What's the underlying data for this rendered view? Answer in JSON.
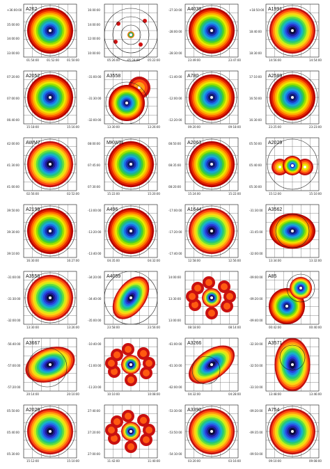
{
  "figure": {
    "panels": [
      {
        "name": "A262",
        "labels_y": [
          "+36:00:00",
          "35:00:00",
          "34:00:00",
          "33:00:00"
        ],
        "labels_x": [
          "01:54:00",
          "01:52:00",
          "01:50:00"
        ],
        "shape": "circle",
        "style": "warm"
      },
      {
        "name": "",
        "labels_y": [
          "16:00:00",
          "14:00:00",
          "12:00:00",
          "10:00:00"
        ],
        "labels_x": [
          "05:26:00",
          "05:24:00",
          "05:22:00"
        ],
        "shape": "small",
        "style": "warm"
      },
      {
        "name": "A4038",
        "labels_y": [
          "-27:30:00",
          "-28:00:00",
          "-28:30:00"
        ],
        "labels_x": [
          "23:49:00",
          "23:47:00"
        ],
        "shape": "circle",
        "style": "warm"
      },
      {
        "name": "A1991",
        "labels_y": [
          "+18:50:00",
          "18:40:00",
          "18:30:00"
        ],
        "labels_x": [
          "14:56:00",
          "14:54:00"
        ],
        "shape": "circle",
        "style": "cool"
      },
      {
        "name": "A2052",
        "labels_y": [
          "07:20:00",
          "07:00:00",
          "06:40:00"
        ],
        "labels_x": [
          "15:18:00",
          "15:16:00"
        ],
        "shape": "circle",
        "style": "warm"
      },
      {
        "name": "A3558",
        "labels_y": [
          "-31:00:00",
          "-31:30:00",
          "-32:00:00"
        ],
        "labels_x": [
          "13:30:00",
          "13:26:00"
        ],
        "shape": "double",
        "style": "warm"
      },
      {
        "name": "A780",
        "labels_y": [
          "-11:40:00",
          "-12:00:00",
          "-12:20:00"
        ],
        "labels_x": [
          "09:20:00",
          "09:18:00"
        ],
        "shape": "circle",
        "style": "warm"
      },
      {
        "name": "A2589",
        "labels_y": [
          "17:10:00",
          "16:50:00",
          "16:30:00"
        ],
        "labels_x": [
          "23:25:00",
          "23:23:00"
        ],
        "shape": "circle",
        "style": "warm"
      },
      {
        "name": "AWM7",
        "labels_y": [
          "42:00:00",
          "41:30:00",
          "41:00:00"
        ],
        "labels_x": [
          "02:56:00",
          "02:52:00"
        ],
        "shape": "circle",
        "style": "cool"
      },
      {
        "name": "MKW3s",
        "labels_y": [
          "08:00:00",
          "07:45:00",
          "07:30:00"
        ],
        "labels_x": [
          "15:22:00",
          "15:20:00"
        ],
        "shape": "circle",
        "style": "warm"
      },
      {
        "name": "A2063",
        "labels_y": [
          "08:50:00",
          "08:35:00",
          "08:20:00"
        ],
        "labels_x": [
          "15:24:00",
          "15:22:00"
        ],
        "shape": "circle",
        "style": "warm"
      },
      {
        "name": "A2029",
        "labels_y": [
          "05:50:00",
          "05:40:00",
          "05:30:00"
        ],
        "labels_x": [
          "15:12:00",
          "15:10:00"
        ],
        "shape": "triple",
        "style": "warm"
      },
      {
        "name": "A2199",
        "labels_y": [
          "39:50:00",
          "39:30:00",
          "39:10:00"
        ],
        "labels_x": [
          "16:30:00",
          "16:27:00"
        ],
        "shape": "circle",
        "style": "warm"
      },
      {
        "name": "A496",
        "labels_y": [
          "-13:00:00",
          "-13:20:00",
          "-13:40:00"
        ],
        "labels_x": [
          "04:35:00",
          "04:32:00"
        ],
        "shape": "circle",
        "style": "warm"
      },
      {
        "name": "A1644",
        "labels_y": [
          "-17:00:00",
          "-17:20:00",
          "-17:40:00"
        ],
        "labels_x": [
          "12:58:00",
          "12:56:00"
        ],
        "shape": "circle",
        "style": "cool"
      },
      {
        "name": "A3562",
        "labels_y": [
          "-31:30:00",
          "-31:45:00",
          "-32:00:00"
        ],
        "labels_x": [
          "13:34:00",
          "13:32:00"
        ],
        "shape": "blob",
        "style": "warm"
      },
      {
        "name": "A3558",
        "labels_y": [
          "-31:00:00",
          "-31:30:00",
          "-32:00:00"
        ],
        "labels_x": [
          "13:30:00",
          "13:26:00"
        ],
        "shape": "circle",
        "style": "cool"
      },
      {
        "name": "A4059",
        "labels_y": [
          "-34:20:00",
          "-34:40:00",
          "-35:00:00"
        ],
        "labels_x": [
          "23:58:00",
          "23:56:00"
        ],
        "shape": "tilted",
        "style": "cool"
      },
      {
        "name": "",
        "labels_y": [
          "14:00:00",
          "13:30:00",
          "13:00:00"
        ],
        "labels_x": [
          "08:18:00",
          "08:14:00"
        ],
        "shape": "patchy",
        "style": "warm"
      },
      {
        "name": "A85",
        "labels_y": [
          "-09:00:00",
          "-09:20:00",
          "-09:40:00"
        ],
        "labels_x": [
          "00:42:00",
          "00:40:00"
        ],
        "shape": "diag",
        "style": "warm"
      },
      {
        "name": "A3667",
        "labels_y": [
          "-56:40:00",
          "-57:00:00",
          "-57:20:00"
        ],
        "labels_x": [
          "20:14:00",
          "20:10:00"
        ],
        "shape": "irregular",
        "style": "cool"
      },
      {
        "name": "",
        "labels_y": [
          "-10:40:00",
          "-11:00:00",
          "-11:20:00"
        ],
        "labels_x": [
          "10:10:00",
          "10:08:00"
        ],
        "shape": "patchy",
        "style": "warm"
      },
      {
        "name": "A3266",
        "labels_y": [
          "-61:00:00",
          "-61:30:00",
          "-62:00:00"
        ],
        "labels_x": [
          "04:32:00",
          "04:28:00"
        ],
        "shape": "elong",
        "style": "cool"
      },
      {
        "name": "A3571",
        "labels_y": [
          "-32:30:00",
          "-32:50:00",
          "-33:10:00"
        ],
        "labels_x": [
          "13:48:00",
          "13:46:00"
        ],
        "shape": "vert",
        "style": "cool"
      },
      {
        "name": "A2029",
        "labels_y": [
          "05:50:00",
          "05:40:00",
          "05:30:00"
        ],
        "labels_x": [
          "15:12:00",
          "15:10:00"
        ],
        "shape": "circle",
        "style": "cool"
      },
      {
        "name": "",
        "labels_y": [
          "27:40:00",
          "27:20:00",
          "27:00:00"
        ],
        "labels_x": [
          "11:42:00",
          "11:40:00"
        ],
        "shape": "patchy",
        "style": "warm"
      },
      {
        "name": "A3390",
        "labels_y": [
          "-53:30:00",
          "-53:50:00",
          "-54:10:00"
        ],
        "labels_x": [
          "03:20:00",
          "03:16:00"
        ],
        "shape": "circle",
        "style": "cool"
      },
      {
        "name": "A754",
        "labels_y": [
          "-09:20:00",
          "-09:35:00",
          "-09:50:00"
        ],
        "labels_x": [
          "09:10:00",
          "09:08:00"
        ],
        "shape": "circle",
        "style": "cool"
      }
    ]
  }
}
